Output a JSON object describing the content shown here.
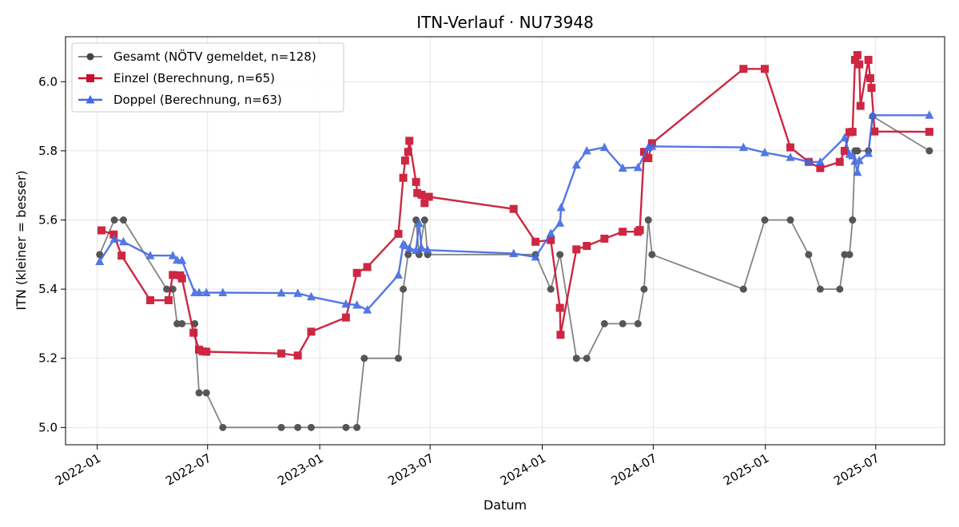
{
  "chart_data": {
    "type": "line",
    "title": "ITN-Verlauf · NU73948",
    "xlabel": "Datum",
    "ylabel": "ITN  (kleiner = besser)",
    "x_type": "date",
    "xlim": [
      "2021-11-10",
      "2025-10-22"
    ],
    "ylim": [
      4.95,
      6.13
    ],
    "x_ticks": [
      "2022-01-01",
      "2022-07-01",
      "2023-01-01",
      "2023-07-01",
      "2024-01-01",
      "2024-07-01",
      "2025-01-01",
      "2025-07-01"
    ],
    "x_tick_labels": [
      "2022-01",
      "2022-07",
      "2023-01",
      "2023-07",
      "2024-01",
      "2024-07",
      "2025-01",
      "2025-07"
    ],
    "y_ticks": [
      5.0,
      5.2,
      5.4,
      5.6,
      5.8,
      6.0
    ],
    "y_tick_labels": [
      "5.0",
      "5.2",
      "5.4",
      "5.6",
      "5.8",
      "6.0"
    ],
    "grid": true,
    "legend_position": "top-left",
    "series": [
      {
        "name": "Gesamt (NÖTV gemeldet, n=128)",
        "color": "#777777",
        "marker_color": "#444444",
        "marker": "circle",
        "points": [
          [
            "2022-01-05",
            5.5
          ],
          [
            "2022-01-29",
            5.6
          ],
          [
            "2022-02-13",
            5.6
          ],
          [
            "2022-04-25",
            5.4
          ],
          [
            "2022-05-05",
            5.4
          ],
          [
            "2022-05-12",
            5.3
          ],
          [
            "2022-05-20",
            5.3
          ],
          [
            "2022-06-10",
            5.3
          ],
          [
            "2022-06-17",
            5.1
          ],
          [
            "2022-06-29",
            5.1
          ],
          [
            "2022-07-26",
            5.0
          ],
          [
            "2022-10-30",
            5.0
          ],
          [
            "2022-11-26",
            5.0
          ],
          [
            "2022-12-18",
            5.0
          ],
          [
            "2023-02-13",
            5.0
          ],
          [
            "2023-03-03",
            5.0
          ],
          [
            "2023-03-15",
            5.2
          ],
          [
            "2023-05-10",
            5.2
          ],
          [
            "2023-05-18",
            5.4
          ],
          [
            "2023-05-26",
            5.5
          ],
          [
            "2023-06-08",
            5.6
          ],
          [
            "2023-06-13",
            5.5
          ],
          [
            "2023-06-22",
            5.6
          ],
          [
            "2023-06-27",
            5.5
          ],
          [
            "2023-12-21",
            5.5
          ],
          [
            "2024-01-15",
            5.4
          ],
          [
            "2024-01-30",
            5.5
          ],
          [
            "2024-02-26",
            5.2
          ],
          [
            "2024-03-14",
            5.2
          ],
          [
            "2024-04-12",
            5.3
          ],
          [
            "2024-05-12",
            5.3
          ],
          [
            "2024-06-06",
            5.3
          ],
          [
            "2024-06-16",
            5.4
          ],
          [
            "2024-06-23",
            5.6
          ],
          [
            "2024-06-29",
            5.5
          ],
          [
            "2024-11-26",
            5.4
          ],
          [
            "2024-12-31",
            5.6
          ],
          [
            "2025-02-11",
            5.6
          ],
          [
            "2025-03-13",
            5.5
          ],
          [
            "2025-04-01",
            5.4
          ],
          [
            "2025-05-03",
            5.4
          ],
          [
            "2025-05-11",
            5.5
          ],
          [
            "2025-05-19",
            5.5
          ],
          [
            "2025-05-24",
            5.6
          ],
          [
            "2025-05-28",
            5.8
          ],
          [
            "2025-06-01",
            5.8
          ],
          [
            "2025-06-19",
            5.8
          ],
          [
            "2025-06-26",
            5.9
          ],
          [
            "2025-09-27",
            5.8
          ]
        ]
      },
      {
        "name": "Einzel (Berechnung, n=65)",
        "color": "#c8102e",
        "marker": "square",
        "points": [
          [
            "2022-01-08",
            5.57
          ],
          [
            "2022-01-28",
            5.558
          ],
          [
            "2022-02-10",
            5.497
          ],
          [
            "2022-03-29",
            5.368
          ],
          [
            "2022-04-28",
            5.368
          ],
          [
            "2022-05-05",
            5.441
          ],
          [
            "2022-05-17",
            5.44
          ],
          [
            "2022-05-20",
            5.431
          ],
          [
            "2022-06-08",
            5.274
          ],
          [
            "2022-06-17",
            5.225
          ],
          [
            "2022-06-23",
            5.22
          ],
          [
            "2022-06-29",
            5.219
          ],
          [
            "2022-10-30",
            5.214
          ],
          [
            "2022-11-26",
            5.208
          ],
          [
            "2022-12-18",
            5.277
          ],
          [
            "2023-02-13",
            5.318
          ],
          [
            "2023-03-03",
            5.447
          ],
          [
            "2023-03-20",
            5.464
          ],
          [
            "2023-05-10",
            5.56
          ],
          [
            "2023-05-18",
            5.722
          ],
          [
            "2023-05-21",
            5.772
          ],
          [
            "2023-05-26",
            5.797
          ],
          [
            "2023-05-28",
            5.829
          ],
          [
            "2023-06-08",
            5.71
          ],
          [
            "2023-06-10",
            5.678
          ],
          [
            "2023-06-17",
            5.673
          ],
          [
            "2023-06-22",
            5.649
          ],
          [
            "2023-06-29",
            5.667
          ],
          [
            "2023-11-15",
            5.632
          ],
          [
            "2023-12-21",
            5.537
          ],
          [
            "2024-01-15",
            5.542
          ],
          [
            "2024-01-30",
            5.346
          ],
          [
            "2024-01-31",
            5.268
          ],
          [
            "2024-02-26",
            5.515
          ],
          [
            "2024-03-14",
            5.525
          ],
          [
            "2024-04-12",
            5.546
          ],
          [
            "2024-05-12",
            5.566
          ],
          [
            "2024-06-06",
            5.566
          ],
          [
            "2024-06-09",
            5.571
          ],
          [
            "2024-06-16",
            5.797
          ],
          [
            "2024-06-23",
            5.779
          ],
          [
            "2024-06-29",
            5.822
          ],
          [
            "2024-11-26",
            6.037
          ],
          [
            "2024-12-31",
            6.037
          ],
          [
            "2025-02-11",
            5.81
          ],
          [
            "2025-03-13",
            5.768
          ],
          [
            "2025-04-01",
            5.75
          ],
          [
            "2025-05-03",
            5.768
          ],
          [
            "2025-05-11",
            5.8
          ],
          [
            "2025-05-19",
            5.854
          ],
          [
            "2025-05-24",
            5.855
          ],
          [
            "2025-05-28",
            6.063
          ],
          [
            "2025-06-01",
            6.077
          ],
          [
            "2025-06-04",
            6.05
          ],
          [
            "2025-06-06",
            5.93
          ],
          [
            "2025-06-19",
            6.063
          ],
          [
            "2025-06-22",
            6.01
          ],
          [
            "2025-06-24",
            5.982
          ],
          [
            "2025-06-29",
            5.856
          ],
          [
            "2025-09-27",
            5.855
          ]
        ]
      },
      {
        "name": "Doppel (Berechnung, n=63)",
        "color": "#4169e1",
        "marker": "triangle",
        "points": [
          [
            "2022-01-05",
            5.48
          ],
          [
            "2022-01-29",
            5.545
          ],
          [
            "2022-02-13",
            5.537
          ],
          [
            "2022-03-29",
            5.497
          ],
          [
            "2022-05-05",
            5.497
          ],
          [
            "2022-05-12",
            5.484
          ],
          [
            "2022-05-20",
            5.483
          ],
          [
            "2022-06-10",
            5.39
          ],
          [
            "2022-06-17",
            5.39
          ],
          [
            "2022-06-29",
            5.39
          ],
          [
            "2022-07-26",
            5.39
          ],
          [
            "2022-10-30",
            5.389
          ],
          [
            "2022-11-26",
            5.388
          ],
          [
            "2022-12-18",
            5.378
          ],
          [
            "2023-02-13",
            5.357
          ],
          [
            "2023-03-03",
            5.354
          ],
          [
            "2023-03-20",
            5.34
          ],
          [
            "2023-05-10",
            5.441
          ],
          [
            "2023-05-18",
            5.53
          ],
          [
            "2023-05-21",
            5.526
          ],
          [
            "2023-05-28",
            5.518
          ],
          [
            "2023-06-08",
            5.512
          ],
          [
            "2023-06-13",
            5.59
          ],
          [
            "2023-06-17",
            5.519
          ],
          [
            "2023-06-27",
            5.513
          ],
          [
            "2023-11-15",
            5.503
          ],
          [
            "2023-12-21",
            5.493
          ],
          [
            "2024-01-15",
            5.561
          ],
          [
            "2024-01-30",
            5.591
          ],
          [
            "2024-02-01",
            5.636
          ],
          [
            "2024-02-26",
            5.759
          ],
          [
            "2024-03-14",
            5.8
          ],
          [
            "2024-04-12",
            5.81
          ],
          [
            "2024-05-12",
            5.75
          ],
          [
            "2024-06-06",
            5.752
          ],
          [
            "2024-06-23",
            5.81
          ],
          [
            "2024-06-29",
            5.813
          ],
          [
            "2024-11-26",
            5.81
          ],
          [
            "2024-12-31",
            5.795
          ],
          [
            "2025-02-11",
            5.781
          ],
          [
            "2025-03-13",
            5.768
          ],
          [
            "2025-04-01",
            5.768
          ],
          [
            "2025-05-11",
            5.838
          ],
          [
            "2025-05-19",
            5.79
          ],
          [
            "2025-05-24",
            5.786
          ],
          [
            "2025-05-28",
            5.77
          ],
          [
            "2025-06-01",
            5.738
          ],
          [
            "2025-06-04",
            5.772
          ],
          [
            "2025-06-19",
            5.793
          ],
          [
            "2025-06-26",
            5.903
          ],
          [
            "2025-09-27",
            5.903
          ]
        ]
      }
    ]
  }
}
